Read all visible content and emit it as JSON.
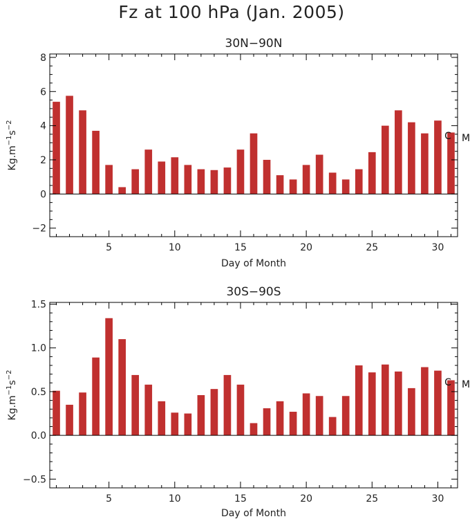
{
  "title": "Fz at 100 hPa (Jan. 2005)",
  "colors": {
    "bar": "#c0302f"
  },
  "chart_data": [
    {
      "type": "bar",
      "title": "30N−90N",
      "xlabel": "Day of Month",
      "ylabel_base": "Kg.m",
      "ylabel_exp1": "−1",
      "ylabel_mid": "s",
      "ylabel_exp2": "−2",
      "xlim": [
        0.5,
        31.5
      ],
      "ylim": [
        -2.5,
        8.2
      ],
      "xticks": [
        5,
        10,
        15,
        20,
        25,
        30
      ],
      "yticks": [
        -2,
        0,
        2,
        4,
        6,
        8
      ],
      "marker_labels": [
        "C",
        "M"
      ],
      "x": [
        1,
        2,
        3,
        4,
        5,
        6,
        7,
        8,
        9,
        10,
        11,
        12,
        13,
        14,
        15,
        16,
        17,
        18,
        19,
        20,
        21,
        22,
        23,
        24,
        25,
        26,
        27,
        28,
        29,
        30,
        31
      ],
      "values": [
        5.4,
        5.75,
        4.9,
        3.7,
        1.7,
        0.4,
        1.45,
        2.6,
        1.9,
        2.15,
        1.7,
        1.45,
        1.4,
        1.55,
        2.6,
        3.55,
        2.0,
        1.1,
        0.85,
        1.7,
        2.3,
        1.25,
        0.85,
        1.45,
        2.45,
        4.0,
        4.9,
        4.2,
        3.55,
        4.3,
        3.6
      ]
    },
    {
      "type": "bar",
      "title": "30S−90S",
      "xlabel": "Day of Month",
      "ylabel_base": "Kg.m",
      "ylabel_exp1": "−1",
      "ylabel_mid": "s",
      "ylabel_exp2": "−2",
      "xlim": [
        0.5,
        31.5
      ],
      "ylim": [
        -0.6,
        1.52
      ],
      "xticks": [
        5,
        10,
        15,
        20,
        25,
        30
      ],
      "yticks": [
        -0.5,
        0.0,
        0.5,
        1.0,
        1.5
      ],
      "ytick_labels": [
        "−0.5",
        "0.0",
        "0.5",
        "1.0",
        "1.5"
      ],
      "marker_labels": [
        "C",
        "M"
      ],
      "x": [
        1,
        2,
        3,
        4,
        5,
        6,
        7,
        8,
        9,
        10,
        11,
        12,
        13,
        14,
        15,
        16,
        17,
        18,
        19,
        20,
        21,
        22,
        23,
        24,
        25,
        26,
        27,
        28,
        29,
        30,
        31
      ],
      "values": [
        0.51,
        0.35,
        0.49,
        0.89,
        1.34,
        1.1,
        0.69,
        0.58,
        0.39,
        0.26,
        0.25,
        0.46,
        0.53,
        0.69,
        0.58,
        0.14,
        0.31,
        0.39,
        0.27,
        0.48,
        0.45,
        0.21,
        0.45,
        0.8,
        0.72,
        0.81,
        0.73,
        0.54,
        0.78,
        0.74,
        0.63
      ]
    }
  ]
}
